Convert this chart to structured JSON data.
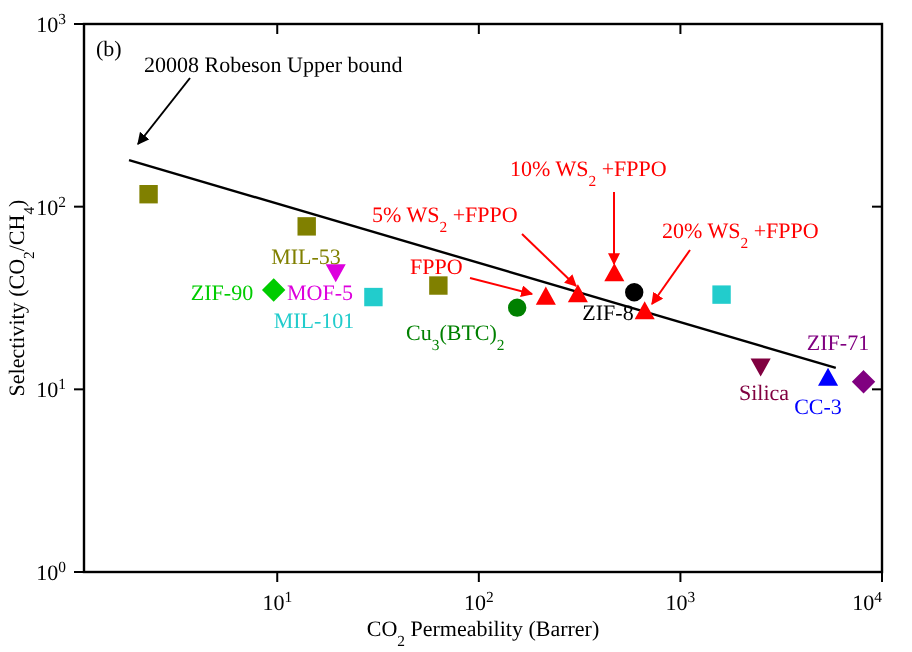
{
  "chart_data": {
    "type": "scatter",
    "xlabel": "CO$_{2}$ Permeability (Barrer)",
    "ylabel": "Selectivity (CO$_{2}$/CH$_{4}$)",
    "log": "xy",
    "xlim": [
      1.1,
      10000
    ],
    "ylim": [
      1,
      1000
    ],
    "xticks": [
      {
        "value": 10,
        "label": "10$^{1}$"
      },
      {
        "value": 100,
        "label": "10$^{2}$"
      },
      {
        "value": 1000,
        "label": "10$^{3}$"
      },
      {
        "value": 10000,
        "label": "10$^{4}$"
      }
    ],
    "yticks": [
      {
        "value": 1,
        "label": "10$^{0}$"
      },
      {
        "value": 10,
        "label": "10$^{1}$"
      },
      {
        "value": 100,
        "label": "10$^{2}$"
      },
      {
        "value": 1000,
        "label": "10$^{3}$"
      }
    ],
    "annotations": [
      "(b)"
    ],
    "series": [
      {
        "name": "20008 Robeson Upper bound",
        "type": "line",
        "color": "#000000",
        "marker": "none",
        "x": [
          1.84,
          5900
        ],
        "values": [
          180,
          13.1
        ]
      },
      {
        "name": "MIL-53",
        "color": "#808000",
        "marker": "square",
        "x": [
          2.3,
          14,
          63
        ],
        "values": [
          117,
          78,
          37
        ]
      },
      {
        "name": "ZIF-90",
        "color": "#00cc00",
        "marker": "diamond",
        "x": [
          9.6
        ],
        "values": [
          35
        ]
      },
      {
        "name": "MOF-5",
        "color": "#dd00dd",
        "marker": "triangle_down",
        "x": [
          19.5
        ],
        "values": [
          44
        ]
      },
      {
        "name": "MIL-101",
        "color": "#22cccc",
        "marker": "square",
        "x": [
          30,
          1600
        ],
        "values": [
          32,
          33
        ]
      },
      {
        "name": "Cu$_{3}$(BTC)$_{2}$",
        "color": "#008000",
        "marker": "circle",
        "x": [
          155
        ],
        "values": [
          28
        ]
      },
      {
        "name": "FPPO",
        "color": "#ff0000",
        "marker": "triangle",
        "x": [
          215
        ],
        "values": [
          32
        ]
      },
      {
        "name": "5% WS$_{2}$ +FPPO",
        "color": "#ff0000",
        "marker": "triangle",
        "x": [
          310
        ],
        "values": [
          33
        ]
      },
      {
        "name": "10% WS$_{2}$ +FPPO",
        "color": "#ff0000",
        "marker": "triangle",
        "x": [
          470
        ],
        "values": [
          43
        ]
      },
      {
        "name": "20% WS$_{2}$ +FPPO",
        "color": "#ff0000",
        "marker": "triangle",
        "x": [
          665
        ],
        "values": [
          26.6
        ]
      },
      {
        "name": "ZIF-8",
        "color": "#000000",
        "marker": "circle",
        "x": [
          590
        ],
        "values": [
          34
        ]
      },
      {
        "name": "Silica",
        "color": "#800040",
        "marker": "triangle_down",
        "x": [
          2500
        ],
        "values": [
          13.4
        ]
      },
      {
        "name": "CC-3",
        "color": "#0000ff",
        "marker": "triangle",
        "x": [
          5400
        ],
        "values": [
          11.5
        ]
      },
      {
        "name": "ZIF-71",
        "color": "#800080",
        "marker": "diamond",
        "x": [
          8100
        ],
        "values": [
          11
        ]
      }
    ]
  }
}
